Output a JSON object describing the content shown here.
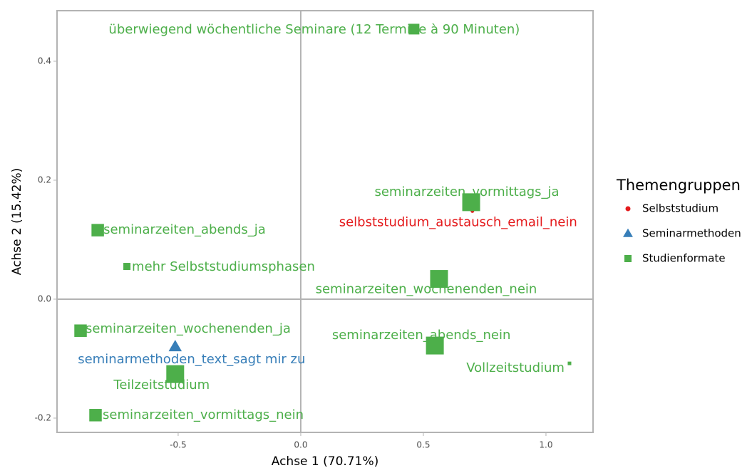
{
  "chart_data": {
    "type": "scatter",
    "xlabel": "Achse 1 (70.71%)",
    "ylabel": "Achse 2 (15.42%)",
    "xlim": [
      -0.994,
      1.192
    ],
    "ylim": [
      -0.224,
      0.485
    ],
    "xticks": [
      -0.5,
      {
        "value": 0,
        "label": "0.0"
      },
      0.5,
      {
        "value": 1,
        "label": "1.0"
      }
    ],
    "yticks": [
      -0.2,
      {
        "value": 0,
        "label": "0.0"
      },
      0.2,
      0.4
    ],
    "legend_title": "Themengruppen",
    "legend": "right",
    "series": [
      {
        "name": "Selbststudium",
        "color": "#e41a1c",
        "marker": "circle",
        "labels": [
          "selbststudium_austausch_email_nein"
        ],
        "x": [
          0.7
        ],
        "values": [
          0.148
        ],
        "sizes": [
          1
        ]
      },
      {
        "name": "Seminarmethoden",
        "color": "#377eb8",
        "marker": "triangle",
        "labels": [
          "seminarmethoden_text_sagt mir zu"
        ],
        "x": [
          -0.512
        ],
        "values": [
          -0.08
        ],
        "sizes": [
          4
        ]
      },
      {
        "name": "Studienformate",
        "color": "#4daf4a",
        "marker": "square",
        "labels": [
          "überwiegend wöchentliche Seminare (12 Termine à 90 Minuten)",
          "seminarzeiten_vormittags_ja",
          "seminarzeiten_abends_ja",
          "mehr Selbststudiumsphasen",
          "seminarzeiten_wochenenden_nein",
          "seminarzeiten_wochenenden_ja",
          "seminarzeiten_abends_nein",
          "Vollzeitstudium",
          "Teilzeitstudium",
          "seminarzeiten_vormittags_nein"
        ],
        "x": [
          0.462,
          0.695,
          -0.828,
          -0.709,
          0.564,
          -0.898,
          0.547,
          1.096,
          -0.512,
          -0.837
        ],
        "values": [
          0.454,
          0.163,
          0.116,
          0.055,
          0.034,
          -0.053,
          -0.078,
          -0.108,
          -0.126,
          -0.195
        ],
        "sizes": [
          3,
          5,
          3.5,
          2,
          5,
          3.5,
          5,
          1,
          5,
          3.5
        ]
      }
    ]
  }
}
